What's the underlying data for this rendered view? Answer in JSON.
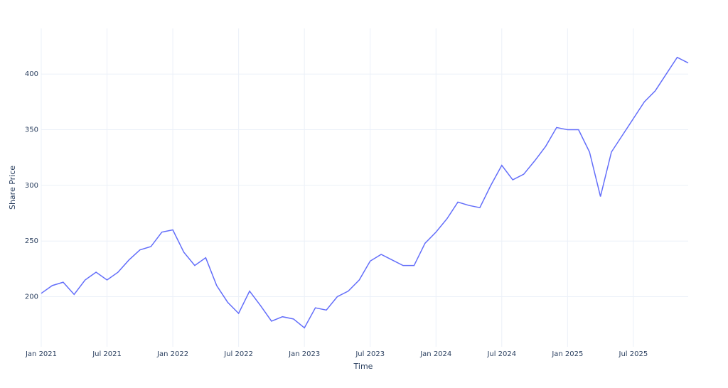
{
  "chart_data": {
    "type": "line",
    "x_title": "Time",
    "y_title": "Share Price",
    "x": [
      "2021-01",
      "2021-02",
      "2021-03",
      "2021-04",
      "2021-05",
      "2021-06",
      "2021-07",
      "2021-08",
      "2021-09",
      "2021-10",
      "2021-11",
      "2021-12",
      "2022-01",
      "2022-02",
      "2022-03",
      "2022-04",
      "2022-05",
      "2022-06",
      "2022-07",
      "2022-08",
      "2022-09",
      "2022-10",
      "2022-11",
      "2022-12",
      "2023-01",
      "2023-02",
      "2023-03",
      "2023-04",
      "2023-05",
      "2023-06",
      "2023-07",
      "2023-08",
      "2023-09",
      "2023-10",
      "2023-11",
      "2023-12",
      "2024-01",
      "2024-02",
      "2024-03",
      "2024-04",
      "2024-05",
      "2024-06",
      "2024-07",
      "2024-08",
      "2024-09",
      "2024-10",
      "2024-11",
      "2024-12",
      "2025-01",
      "2025-02",
      "2025-03",
      "2025-04",
      "2025-05",
      "2025-06",
      "2025-07",
      "2025-08",
      "2025-09",
      "2025-10",
      "2025-11",
      "2025-12"
    ],
    "series": [
      {
        "name": "Share Price",
        "color": "#636efa",
        "values": [
          203,
          210,
          213,
          202,
          215,
          222,
          215,
          222,
          233,
          242,
          245,
          258,
          260,
          240,
          228,
          235,
          210,
          195,
          185,
          205,
          192,
          178,
          182,
          180,
          172,
          190,
          188,
          200,
          205,
          215,
          232,
          238,
          233,
          228,
          228,
          248,
          258,
          270,
          285,
          282,
          280,
          300,
          318,
          305,
          310,
          322,
          335,
          352,
          350,
          350,
          330,
          290,
          330,
          345,
          360,
          375,
          385,
          400,
          415,
          410
        ]
      }
    ],
    "xlim": [
      "2021-01",
      "2025-12"
    ],
    "xticks": [
      {
        "value": "2021-01",
        "label": "Jan 2021"
      },
      {
        "value": "2021-07",
        "label": "Jul 2021"
      },
      {
        "value": "2022-01",
        "label": "Jan 2022"
      },
      {
        "value": "2022-07",
        "label": "Jul 2022"
      },
      {
        "value": "2023-01",
        "label": "Jan 2023"
      },
      {
        "value": "2023-07",
        "label": "Jul 2023"
      },
      {
        "value": "2024-01",
        "label": "Jan 2024"
      },
      {
        "value": "2024-07",
        "label": "Jul 2024"
      },
      {
        "value": "2025-01",
        "label": "Jan 2025"
      },
      {
        "value": "2025-07",
        "label": "Jul 2025"
      }
    ],
    "ylim": [
      155,
      441
    ],
    "yticks": [
      200,
      250,
      300,
      350,
      400
    ],
    "grid": true
  }
}
